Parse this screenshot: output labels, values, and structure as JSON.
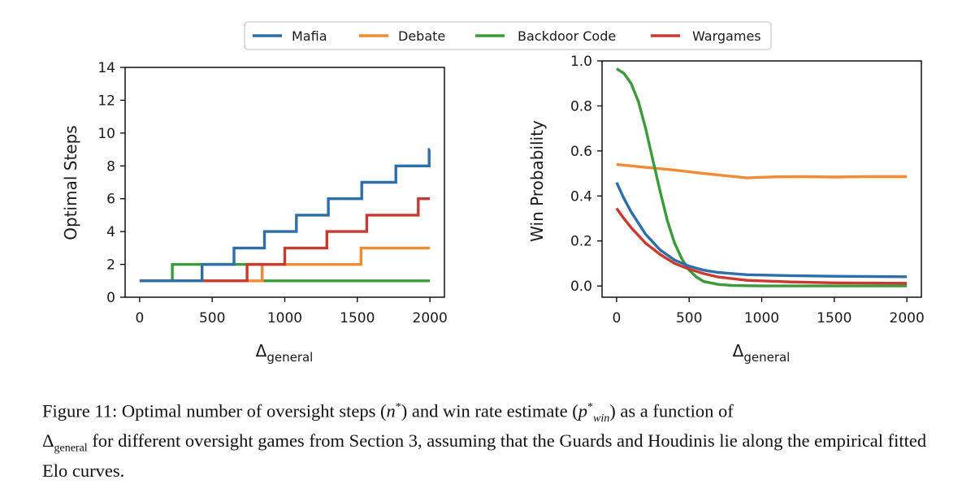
{
  "legend": [
    {
      "label": "Mafia",
      "color": "#2f6fa9"
    },
    {
      "label": "Debate",
      "color": "#f28b33"
    },
    {
      "label": "Backdoor Code",
      "color": "#3c9a3b"
    },
    {
      "label": "Wargames",
      "color": "#c93a2f"
    }
  ],
  "chart_data": [
    {
      "type": "line",
      "subtype": "step",
      "xlabel_main": "Δ",
      "xlabel_sub": "general",
      "ylabel": "Optimal Steps",
      "xlim": [
        -100,
        2100
      ],
      "ylim": [
        0,
        14
      ],
      "xticks": [
        0,
        500,
        1000,
        1500,
        2000
      ],
      "yticks": [
        0,
        2,
        4,
        6,
        8,
        10,
        12,
        14
      ],
      "tick_labels_x": [
        "0",
        "500",
        "1000",
        "1500",
        "2000"
      ],
      "tick_labels_y": [
        "0",
        "2",
        "4",
        "6",
        "8",
        "10",
        "12",
        "14"
      ],
      "series": [
        {
          "name": "Backdoor Code",
          "x": [
            0,
            225,
            225,
            845,
            845,
            2000
          ],
          "y": [
            1,
            1,
            2,
            2,
            1,
            1
          ]
        },
        {
          "name": "Debate",
          "x": [
            0,
            845,
            845,
            1525,
            1525,
            2000
          ],
          "y": [
            1,
            1,
            2,
            2,
            3,
            3
          ]
        },
        {
          "name": "Wargames",
          "x": [
            0,
            740,
            740,
            1000,
            1000,
            1290,
            1290,
            1565,
            1565,
            1920,
            1920,
            2000
          ],
          "y": [
            1,
            1,
            2,
            2,
            3,
            3,
            4,
            4,
            5,
            5,
            6,
            6
          ]
        },
        {
          "name": "Mafia",
          "x": [
            0,
            430,
            430,
            650,
            650,
            860,
            860,
            1080,
            1080,
            1300,
            1300,
            1530,
            1530,
            1765,
            1765,
            1995,
            1995,
            2000
          ],
          "y": [
            1,
            1,
            2,
            2,
            3,
            3,
            4,
            4,
            5,
            5,
            6,
            6,
            7,
            7,
            8,
            8,
            9,
            9
          ]
        }
      ]
    },
    {
      "type": "line",
      "xlabel_main": "Δ",
      "xlabel_sub": "general",
      "ylabel": "Win Probability",
      "xlim": [
        -100,
        2100
      ],
      "ylim": [
        -0.05,
        1.0
      ],
      "xticks": [
        0,
        500,
        1000,
        1500,
        2000
      ],
      "yticks": [
        0.0,
        0.2,
        0.4,
        0.6,
        0.8,
        1.0
      ],
      "tick_labels_x": [
        "0",
        "500",
        "1000",
        "1500",
        "2000"
      ],
      "tick_labels_y": [
        "0.0",
        "0.2",
        "0.4",
        "0.6",
        "0.8",
        "1.0"
      ],
      "series": [
        {
          "name": "Debate",
          "x": [
            0,
            200,
            400,
            600,
            900,
            1100,
            1300,
            1500,
            1700,
            2000
          ],
          "y": [
            0.54,
            0.527,
            0.515,
            0.5,
            0.48,
            0.485,
            0.486,
            0.484,
            0.486,
            0.486
          ]
        },
        {
          "name": "Backdoor Code",
          "x": [
            0,
            50,
            100,
            150,
            200,
            250,
            300,
            350,
            400,
            450,
            500,
            550,
            600,
            700,
            800,
            1000,
            2000
          ],
          "y": [
            0.965,
            0.945,
            0.9,
            0.82,
            0.7,
            0.56,
            0.42,
            0.29,
            0.19,
            0.12,
            0.07,
            0.04,
            0.02,
            0.007,
            0.002,
            0.0,
            0.0
          ]
        },
        {
          "name": "Mafia",
          "x": [
            0,
            50,
            100,
            200,
            300,
            400,
            500,
            600,
            700,
            900,
            1200,
            1500,
            2000
          ],
          "y": [
            0.46,
            0.39,
            0.33,
            0.23,
            0.16,
            0.115,
            0.088,
            0.07,
            0.06,
            0.05,
            0.046,
            0.043,
            0.041
          ]
        },
        {
          "name": "Wargames",
          "x": [
            0,
            50,
            100,
            200,
            300,
            400,
            500,
            600,
            700,
            900,
            1200,
            1500,
            2000
          ],
          "y": [
            0.345,
            0.3,
            0.26,
            0.19,
            0.14,
            0.1,
            0.075,
            0.055,
            0.04,
            0.025,
            0.018,
            0.014,
            0.012
          ]
        }
      ]
    }
  ],
  "caption": {
    "prefix": "Figure 11: Optimal number of oversight steps (",
    "n_sym": "n",
    "n_sup": "*",
    "mid": ") and win rate estimate (",
    "p_sym": "p",
    "p_sup": "*",
    "p_sub": "win",
    "after_p": ") as a function of",
    "delta": "Δ",
    "delta_sub": "general",
    "rest": " for different oversight games from Section 3, assuming that the Guards and Houdinis lie along the empirical fitted Elo curves."
  }
}
